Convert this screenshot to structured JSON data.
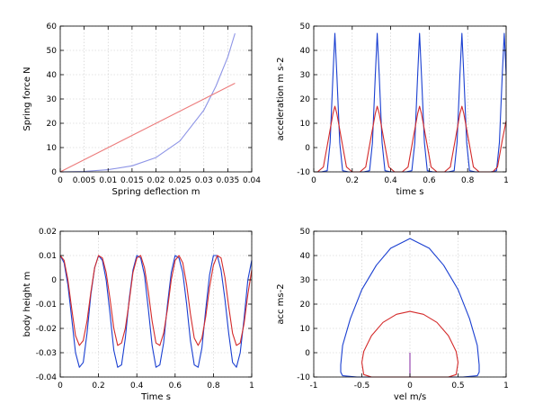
{
  "colors": {
    "blue": "#1a3fd1",
    "red": "#d42a2a",
    "light_blue": "#8d94e6",
    "light_red": "#ec7b7b",
    "purple": "#8e3aa8"
  },
  "chart_data": [
    {
      "id": "spring",
      "type": "line",
      "xlabel": "Spring deflection m",
      "ylabel": "Spring force N",
      "xlim": [
        0,
        0.04
      ],
      "ylim": [
        0,
        60
      ],
      "grid": true,
      "xticks": [
        0,
        0.005,
        0.01,
        0.015,
        0.02,
        0.025,
        0.03,
        0.035,
        0.04
      ],
      "xtick_labels": [
        "0",
        "0.005",
        "0.01",
        "0.015",
        "0.02",
        "0.025",
        "0.03",
        "0.035",
        "0.04"
      ],
      "yticks": [
        0,
        10,
        20,
        30,
        40,
        50,
        60
      ],
      "ytick_labels": [
        "0",
        "10",
        "20",
        "30",
        "40",
        "50",
        "60"
      ],
      "series": [
        {
          "color": "light_blue",
          "x": [
            0,
            0.005,
            0.01,
            0.015,
            0.02,
            0.025,
            0.03,
            0.0325,
            0.035,
            0.0365
          ],
          "y": [
            0,
            0.2,
            0.9,
            2.5,
            5.9,
            12.7,
            25.4,
            35.2,
            47.3,
            57
          ]
        },
        {
          "color": "light_red",
          "x": [
            0,
            0.0365
          ],
          "y": [
            0,
            36.5
          ]
        }
      ]
    },
    {
      "id": "accel-time",
      "type": "line",
      "xlabel": "time s",
      "ylabel": "acceleration m s-2",
      "xlim": [
        0,
        1
      ],
      "ylim": [
        -10,
        50
      ],
      "grid": true,
      "xticks": [
        0,
        0.2,
        0.4,
        0.6,
        0.8,
        1
      ],
      "xtick_labels": [
        "0",
        "0.2",
        "0.4",
        "0.6",
        "0.8",
        "1"
      ],
      "yticks": [
        -10,
        0,
        10,
        20,
        30,
        40,
        50
      ],
      "ytick_labels": [
        "-10",
        "0",
        "10",
        "20",
        "30",
        "40",
        "50"
      ],
      "series": [
        {
          "color": "blue",
          "x": [
            0,
            0.04,
            0.07,
            0.085,
            0.1,
            0.11,
            0.12,
            0.135,
            0.15,
            0.18,
            0.26,
            0.29,
            0.305,
            0.32,
            0.33,
            0.34,
            0.355,
            0.37,
            0.4,
            0.48,
            0.51,
            0.525,
            0.54,
            0.55,
            0.56,
            0.575,
            0.59,
            0.62,
            0.7,
            0.73,
            0.745,
            0.76,
            0.77,
            0.78,
            0.795,
            0.81,
            0.84,
            0.92,
            0.95,
            0.965,
            0.98,
            0.99,
            1.0
          ],
          "y": [
            -10,
            -10,
            -9.5,
            2,
            30,
            47,
            30,
            2,
            -9.5,
            -10,
            -10,
            -9.5,
            2,
            30,
            47,
            30,
            2,
            -9.5,
            -10,
            -10,
            -9.5,
            2,
            30,
            47,
            30,
            2,
            -9.5,
            -10,
            -10,
            -9.5,
            2,
            30,
            47,
            30,
            2,
            -9.5,
            -10,
            -10,
            -9.5,
            2,
            30,
            47,
            30
          ]
        },
        {
          "color": "red",
          "x": [
            0,
            0.02,
            0.05,
            0.075,
            0.1,
            0.11,
            0.12,
            0.145,
            0.17,
            0.2,
            0.24,
            0.27,
            0.295,
            0.32,
            0.33,
            0.34,
            0.365,
            0.39,
            0.42,
            0.46,
            0.49,
            0.515,
            0.54,
            0.55,
            0.56,
            0.585,
            0.61,
            0.64,
            0.68,
            0.71,
            0.735,
            0.76,
            0.77,
            0.78,
            0.805,
            0.83,
            0.86,
            0.93,
            0.955,
            0.98,
            1.0
          ],
          "y": [
            -10,
            -10,
            -8,
            3,
            14,
            17,
            14,
            3,
            -8,
            -10,
            -10,
            -8,
            3,
            14,
            17,
            14,
            3,
            -8,
            -10,
            -10,
            -8,
            3,
            14,
            17,
            14,
            3,
            -8,
            -10,
            -10,
            -8,
            3,
            14,
            17,
            14,
            3,
            -8,
            -10,
            -10,
            -8,
            3,
            11
          ]
        }
      ]
    },
    {
      "id": "height-time",
      "type": "line",
      "xlabel": "Time s",
      "ylabel": "body height m",
      "xlim": [
        0,
        1
      ],
      "ylim": [
        -0.04,
        0.02
      ],
      "grid": true,
      "xticks": [
        0,
        0.2,
        0.4,
        0.6,
        0.8,
        1
      ],
      "xtick_labels": [
        "0",
        "0.2",
        "0.4",
        "0.6",
        "0.8",
        "1"
      ],
      "yticks": [
        -0.04,
        -0.03,
        -0.02,
        -0.01,
        0,
        0.01,
        0.02
      ],
      "ytick_labels": [
        "-0.04",
        "-0.03",
        "-0.02",
        "-0.01",
        "0",
        "0.01",
        "0.02"
      ],
      "series": [
        {
          "color": "blue",
          "x": [
            0,
            0.02,
            0.04,
            0.06,
            0.08,
            0.1,
            0.12,
            0.14,
            0.16,
            0.18,
            0.2,
            0.22,
            0.24,
            0.26,
            0.28,
            0.3,
            0.32,
            0.34,
            0.36,
            0.38,
            0.4,
            0.42,
            0.44,
            0.46,
            0.48,
            0.5,
            0.52,
            0.54,
            0.56,
            0.58,
            0.6,
            0.62,
            0.64,
            0.66,
            0.68,
            0.7,
            0.72,
            0.74,
            0.76,
            0.78,
            0.8,
            0.82,
            0.84,
            0.86,
            0.88,
            0.9,
            0.92,
            0.94,
            0.96,
            0.98,
            1.0
          ],
          "y": [
            0.01,
            0.007,
            -0.002,
            -0.016,
            -0.03,
            -0.036,
            -0.034,
            -0.022,
            -0.006,
            0.005,
            0.01,
            0.008,
            0.0,
            -0.014,
            -0.029,
            -0.036,
            -0.035,
            -0.024,
            -0.008,
            0.004,
            0.01,
            0.009,
            0.002,
            -0.012,
            -0.027,
            -0.036,
            -0.035,
            -0.026,
            -0.01,
            0.003,
            0.01,
            0.009,
            0.003,
            -0.01,
            -0.025,
            -0.035,
            -0.036,
            -0.028,
            -0.012,
            0.002,
            0.01,
            0.01,
            0.004,
            -0.008,
            -0.022,
            -0.034,
            -0.036,
            -0.03,
            -0.016,
            0.0,
            0.008
          ]
        },
        {
          "color": "red",
          "x": [
            0,
            0.02,
            0.04,
            0.06,
            0.08,
            0.1,
            0.12,
            0.14,
            0.16,
            0.18,
            0.2,
            0.22,
            0.24,
            0.26,
            0.28,
            0.3,
            0.32,
            0.34,
            0.36,
            0.38,
            0.4,
            0.42,
            0.44,
            0.46,
            0.48,
            0.5,
            0.52,
            0.54,
            0.56,
            0.58,
            0.6,
            0.62,
            0.64,
            0.66,
            0.68,
            0.7,
            0.72,
            0.74,
            0.76,
            0.78,
            0.8,
            0.82,
            0.84,
            0.86,
            0.88,
            0.9,
            0.92,
            0.94,
            0.96,
            0.98,
            1.0
          ],
          "y": [
            0.01,
            0.008,
            0.0,
            -0.012,
            -0.023,
            -0.027,
            -0.025,
            -0.017,
            -0.005,
            0.005,
            0.01,
            0.009,
            0.003,
            -0.008,
            -0.02,
            -0.027,
            -0.026,
            -0.02,
            -0.009,
            0.003,
            0.009,
            0.01,
            0.005,
            -0.005,
            -0.017,
            -0.026,
            -0.027,
            -0.022,
            -0.012,
            0.0,
            0.008,
            0.01,
            0.007,
            -0.002,
            -0.014,
            -0.024,
            -0.027,
            -0.024,
            -0.015,
            -0.003,
            0.006,
            0.01,
            0.009,
            0.001,
            -0.011,
            -0.022,
            -0.027,
            -0.026,
            -0.018,
            -0.006,
            0.004
          ]
        }
      ]
    },
    {
      "id": "phase",
      "type": "line",
      "xlabel": "vel m/s",
      "ylabel": "acc ms-2",
      "xlim": [
        -1,
        1
      ],
      "ylim": [
        -10,
        50
      ],
      "grid": true,
      "xticks": [
        -1,
        -0.5,
        0,
        0.5,
        1
      ],
      "xtick_labels": [
        "-1",
        "-0.5",
        "0",
        "0.5",
        "1"
      ],
      "yticks": [
        -10,
        0,
        10,
        20,
        30,
        40,
        50
      ],
      "ytick_labels": [
        "-10",
        "0",
        "10",
        "20",
        "30",
        "40",
        "50"
      ],
      "series": [
        {
          "color": "blue",
          "x": [
            -0.72,
            -0.7,
            -0.62,
            -0.5,
            -0.35,
            -0.2,
            0,
            0.2,
            0.35,
            0.5,
            0.62,
            0.7,
            0.72,
            0.72,
            0.7,
            0.55,
            0.35,
            0,
            -0.35,
            -0.55,
            -0.7,
            -0.72,
            -0.72
          ],
          "y": [
            -5,
            3,
            14,
            26,
            36,
            43,
            47,
            43,
            36,
            26,
            14,
            3,
            -5,
            -8,
            -9.5,
            -10,
            -10,
            -10,
            -10,
            -10,
            -9.5,
            -8,
            -5
          ]
        },
        {
          "color": "red",
          "x": [
            -0.5,
            -0.48,
            -0.4,
            -0.28,
            -0.14,
            0,
            0.14,
            0.28,
            0.4,
            0.48,
            0.5,
            0.48,
            0.4,
            0,
            -0.4,
            -0.48,
            -0.5
          ],
          "y": [
            -4,
            0.5,
            7,
            12.5,
            15.8,
            17,
            15.8,
            12.5,
            7,
            0.5,
            -4,
            -9,
            -10,
            -10,
            -10,
            -9,
            -4
          ]
        },
        {
          "color": "purple",
          "x": [
            0,
            0
          ],
          "y": [
            -10,
            0
          ]
        }
      ]
    }
  ]
}
